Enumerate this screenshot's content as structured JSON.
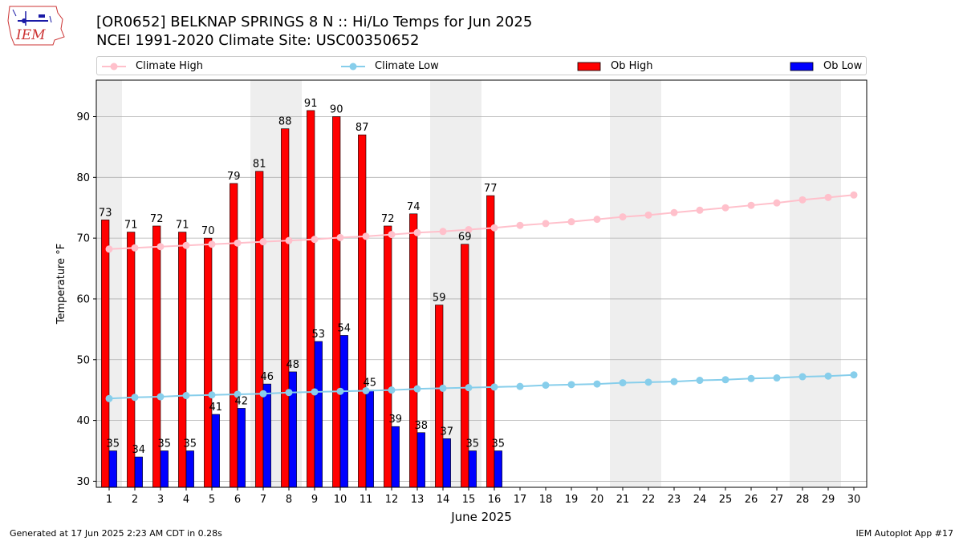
{
  "header": {
    "title_line1": "[OR0652] BELKNAP SPRINGS 8 N :: Hi/Lo Temps for Jun 2025",
    "title_line2": "NCEI 1991-2020 Climate Site: USC00350652"
  },
  "logo": {
    "text": "IEM"
  },
  "footer": {
    "left": "Generated at 17 Jun 2025 2:23 AM CDT in 0.28s",
    "right": "IEM Autoplot App #17"
  },
  "colors": {
    "ob_high": "#ff0000",
    "ob_low": "#0000ff",
    "climate_high": "#ffc0cb",
    "climate_low": "#87ceeb",
    "weekend_band": "#eeeeee",
    "grid": "#b0b0b0"
  },
  "chart_data": {
    "type": "bar",
    "title": "[OR0652] BELKNAP SPRINGS 8 N :: Hi/Lo Temps for Jun 2025",
    "subtitle": "NCEI 1991-2020 Climate Site: USC00350652",
    "xlabel": "June 2025",
    "ylabel": "Temperature °F",
    "ylim": [
      29,
      96
    ],
    "xlim": [
      0.5,
      30.5
    ],
    "yticks": [
      30,
      40,
      50,
      60,
      70,
      80,
      90
    ],
    "categories": [
      1,
      2,
      3,
      4,
      5,
      6,
      7,
      8,
      9,
      10,
      11,
      12,
      13,
      14,
      15,
      16,
      17,
      18,
      19,
      20,
      21,
      22,
      23,
      24,
      25,
      26,
      27,
      28,
      29,
      30
    ],
    "grid": "horizontal",
    "legend_placement": "top",
    "weekend_days": [
      1,
      7,
      8,
      14,
      15,
      21,
      22,
      28,
      29
    ],
    "legend": [
      "Climate High",
      "Climate Low",
      "Ob High",
      "Ob Low"
    ],
    "series": [
      {
        "name": "Ob High",
        "kind": "bar",
        "values": [
          73,
          71,
          72,
          71,
          70,
          79,
          81,
          88,
          91,
          90,
          87,
          72,
          74,
          59,
          69,
          77,
          null,
          null,
          null,
          null,
          null,
          null,
          null,
          null,
          null,
          null,
          null,
          null,
          null,
          null
        ]
      },
      {
        "name": "Ob Low",
        "kind": "bar",
        "values": [
          35,
          34,
          35,
          35,
          41,
          42,
          46,
          48,
          53,
          54,
          45,
          39,
          38,
          37,
          35,
          35,
          null,
          null,
          null,
          null,
          null,
          null,
          null,
          null,
          null,
          null,
          null,
          null,
          null,
          null
        ]
      },
      {
        "name": "Climate High",
        "kind": "line",
        "values": [
          68.2,
          68.4,
          68.6,
          68.8,
          69.0,
          69.2,
          69.4,
          69.6,
          69.8,
          70.1,
          70.3,
          70.6,
          70.9,
          71.1,
          71.4,
          71.7,
          72.1,
          72.4,
          72.7,
          73.1,
          73.5,
          73.8,
          74.2,
          74.6,
          75.0,
          75.4,
          75.8,
          76.3,
          76.7,
          77.1
        ]
      },
      {
        "name": "Climate Low",
        "kind": "line",
        "values": [
          43.6,
          43.8,
          43.9,
          44.1,
          44.2,
          44.3,
          44.4,
          44.6,
          44.7,
          44.8,
          44.9,
          45.0,
          45.2,
          45.3,
          45.4,
          45.5,
          45.6,
          45.8,
          45.9,
          46.0,
          46.2,
          46.3,
          46.4,
          46.6,
          46.7,
          46.9,
          47.0,
          47.2,
          47.3,
          47.5
        ]
      }
    ]
  }
}
